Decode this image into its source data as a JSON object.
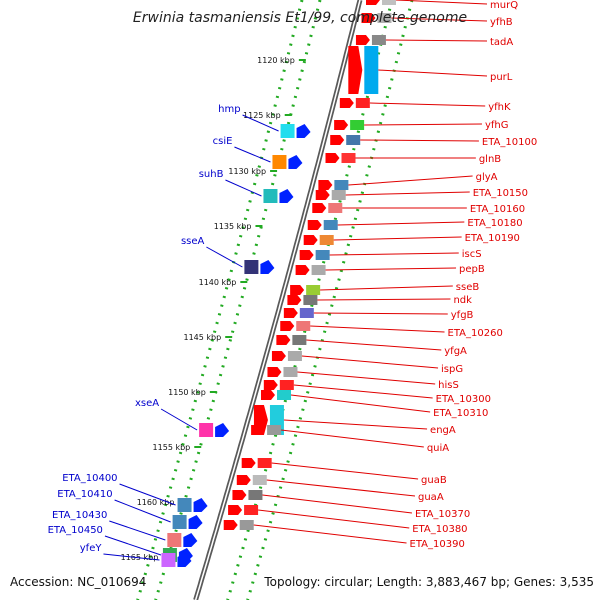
{
  "title": "Erwinia tasmaniensis Et1/99, complete genome",
  "accession": "Accession: NC_010694",
  "topology": "Topology: circular; Length: 3,883,467 bp; Genes: 3,535",
  "colors": {
    "rightLabel": "#e00000",
    "leftLabel": "#0000cc",
    "backbone": "#808080",
    "tick": "#22aa22"
  },
  "kbp_ticks": [
    "1120 kbp",
    "1125 kbp",
    "1130 kbp",
    "1135 kbp",
    "1140 kbp",
    "1145 kbp",
    "1150 kbp",
    "1155 kbp",
    "1160 kbp",
    "1165 kbp"
  ],
  "right_genes": [
    "murQ",
    "yfhB",
    "tadA",
    "purL",
    "yfhK",
    "yfhG",
    "ETA_10100",
    "glnB",
    "glyA",
    "ETA_10150",
    "ETA_10160",
    "ETA_10180",
    "ETA_10190",
    "iscS",
    "pepB",
    "sseB",
    "ndk",
    "yfgB",
    "ETA_10260",
    "yfgA",
    "ispG",
    "hisS",
    "ETA_10300",
    "ETA_10310",
    "engA",
    "quiA",
    "guaB",
    "guaA",
    "ETA_10370",
    "ETA_10380",
    "ETA_10390"
  ],
  "left_genes": [
    "hmp",
    "csiE",
    "suhB",
    "sseA",
    "xseA",
    "ETA_10400",
    "ETA_10410",
    "ETA_10430",
    "ETA_10450",
    "yfeY"
  ]
}
